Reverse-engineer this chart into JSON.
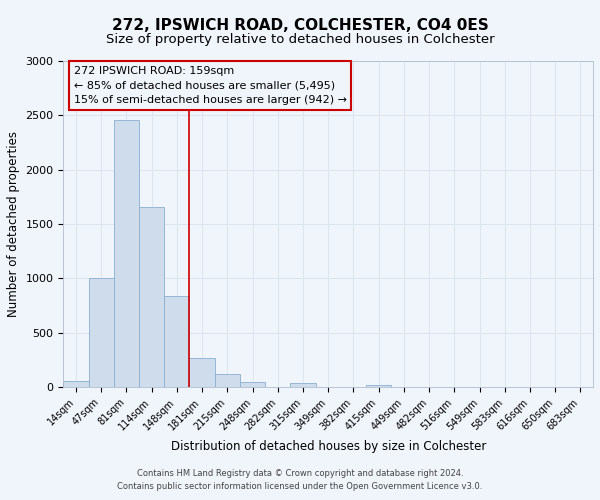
{
  "title": "272, IPSWICH ROAD, COLCHESTER, CO4 0ES",
  "subtitle": "Size of property relative to detached houses in Colchester",
  "xlabel": "Distribution of detached houses by size in Colchester",
  "ylabel": "Number of detached properties",
  "footer_lines": [
    "Contains HM Land Registry data © Crown copyright and database right 2024.",
    "Contains public sector information licensed under the Open Government Licence v3.0."
  ],
  "bin_labels": [
    "14sqm",
    "47sqm",
    "81sqm",
    "114sqm",
    "148sqm",
    "181sqm",
    "215sqm",
    "248sqm",
    "282sqm",
    "315sqm",
    "349sqm",
    "382sqm",
    "415sqm",
    "449sqm",
    "482sqm",
    "516sqm",
    "549sqm",
    "583sqm",
    "616sqm",
    "650sqm",
    "683sqm"
  ],
  "bar_values": [
    55,
    1000,
    2460,
    1660,
    840,
    265,
    120,
    45,
    5,
    35,
    0,
    0,
    20,
    0,
    0,
    0,
    0,
    0,
    0,
    0,
    0
  ],
  "bar_color": "#cfdcec",
  "bar_edgecolor": "#8aafd0",
  "grid_color": "#dce4f0",
  "annotation_line1": "272 IPSWICH ROAD: 159sqm",
  "annotation_line2": "← 85% of detached houses are smaller (5,495)",
  "annotation_line3": "15% of semi-detached houses are larger (942) →",
  "vline_x_index": 4.5,
  "vline_color": "#cc0000",
  "annotation_box_edgecolor": "#cc0000",
  "ylim": [
    0,
    3000
  ],
  "yticks": [
    0,
    500,
    1000,
    1500,
    2000,
    2500,
    3000
  ],
  "background_color": "#f0f4fb",
  "title_fontsize": 11,
  "subtitle_fontsize": 9.5,
  "ylabel_fontsize": 8.5,
  "xlabel_fontsize": 8.5
}
